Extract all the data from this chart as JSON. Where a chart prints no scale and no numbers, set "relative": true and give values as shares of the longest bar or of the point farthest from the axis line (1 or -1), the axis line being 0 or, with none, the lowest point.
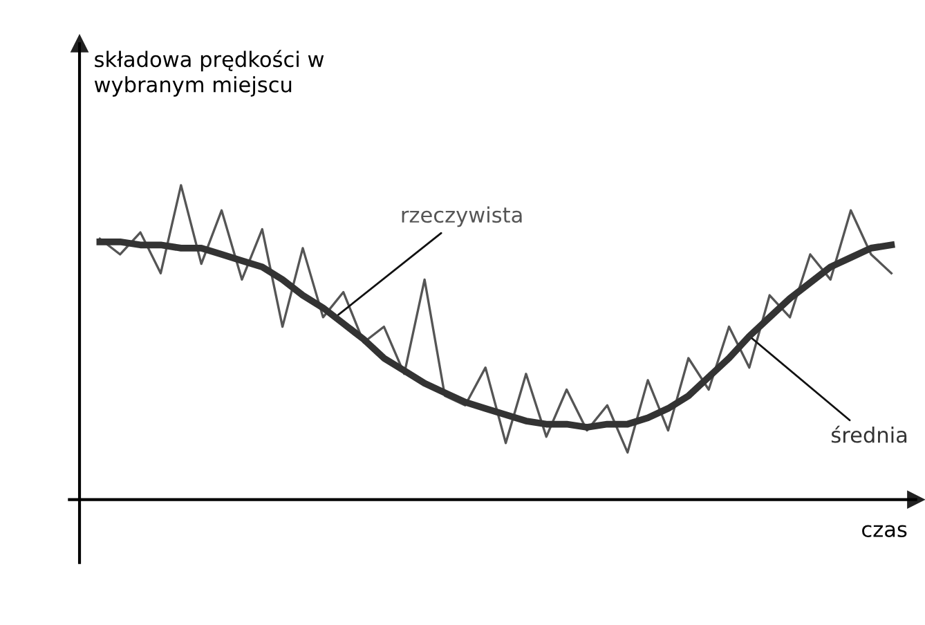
{
  "chart_data": {
    "type": "line",
    "relative": true,
    "ylabel": "składowa prędkości w\nwybranym miejscu",
    "xlabel": "czas",
    "legend": false,
    "grid": false,
    "categories": [
      null,
      null,
      null,
      null,
      null,
      null,
      null,
      null,
      null,
      null,
      null,
      null,
      null,
      null,
      null,
      null,
      null,
      null,
      null,
      null,
      null,
      null,
      null,
      null,
      null,
      null,
      null,
      null,
      null,
      null,
      null,
      null,
      null,
      null,
      null,
      null,
      null,
      null,
      null,
      null
    ],
    "series": [
      {
        "name": "rzeczywista",
        "color": "#555555",
        "values": [
          0.83,
          0.78,
          0.85,
          0.72,
          1.0,
          0.75,
          0.92,
          0.7,
          0.86,
          0.55,
          0.8,
          0.58,
          0.66,
          0.5,
          0.55,
          0.4,
          0.7,
          0.33,
          0.3,
          0.42,
          0.18,
          0.4,
          0.2,
          0.35,
          0.22,
          0.3,
          0.15,
          0.38,
          0.22,
          0.45,
          0.35,
          0.55,
          0.42,
          0.65,
          0.58,
          0.78,
          0.7,
          0.92,
          0.78,
          0.72
        ]
      },
      {
        "name": "średnia",
        "color": "#333333",
        "values": [
          0.82,
          0.82,
          0.81,
          0.81,
          0.8,
          0.8,
          0.78,
          0.76,
          0.74,
          0.7,
          0.65,
          0.61,
          0.56,
          0.51,
          0.45,
          0.41,
          0.37,
          0.34,
          0.31,
          0.29,
          0.27,
          0.25,
          0.24,
          0.24,
          0.23,
          0.24,
          0.24,
          0.26,
          0.29,
          0.33,
          0.39,
          0.45,
          0.52,
          0.58,
          0.64,
          0.69,
          0.74,
          0.77,
          0.8,
          0.81
        ]
      }
    ]
  }
}
